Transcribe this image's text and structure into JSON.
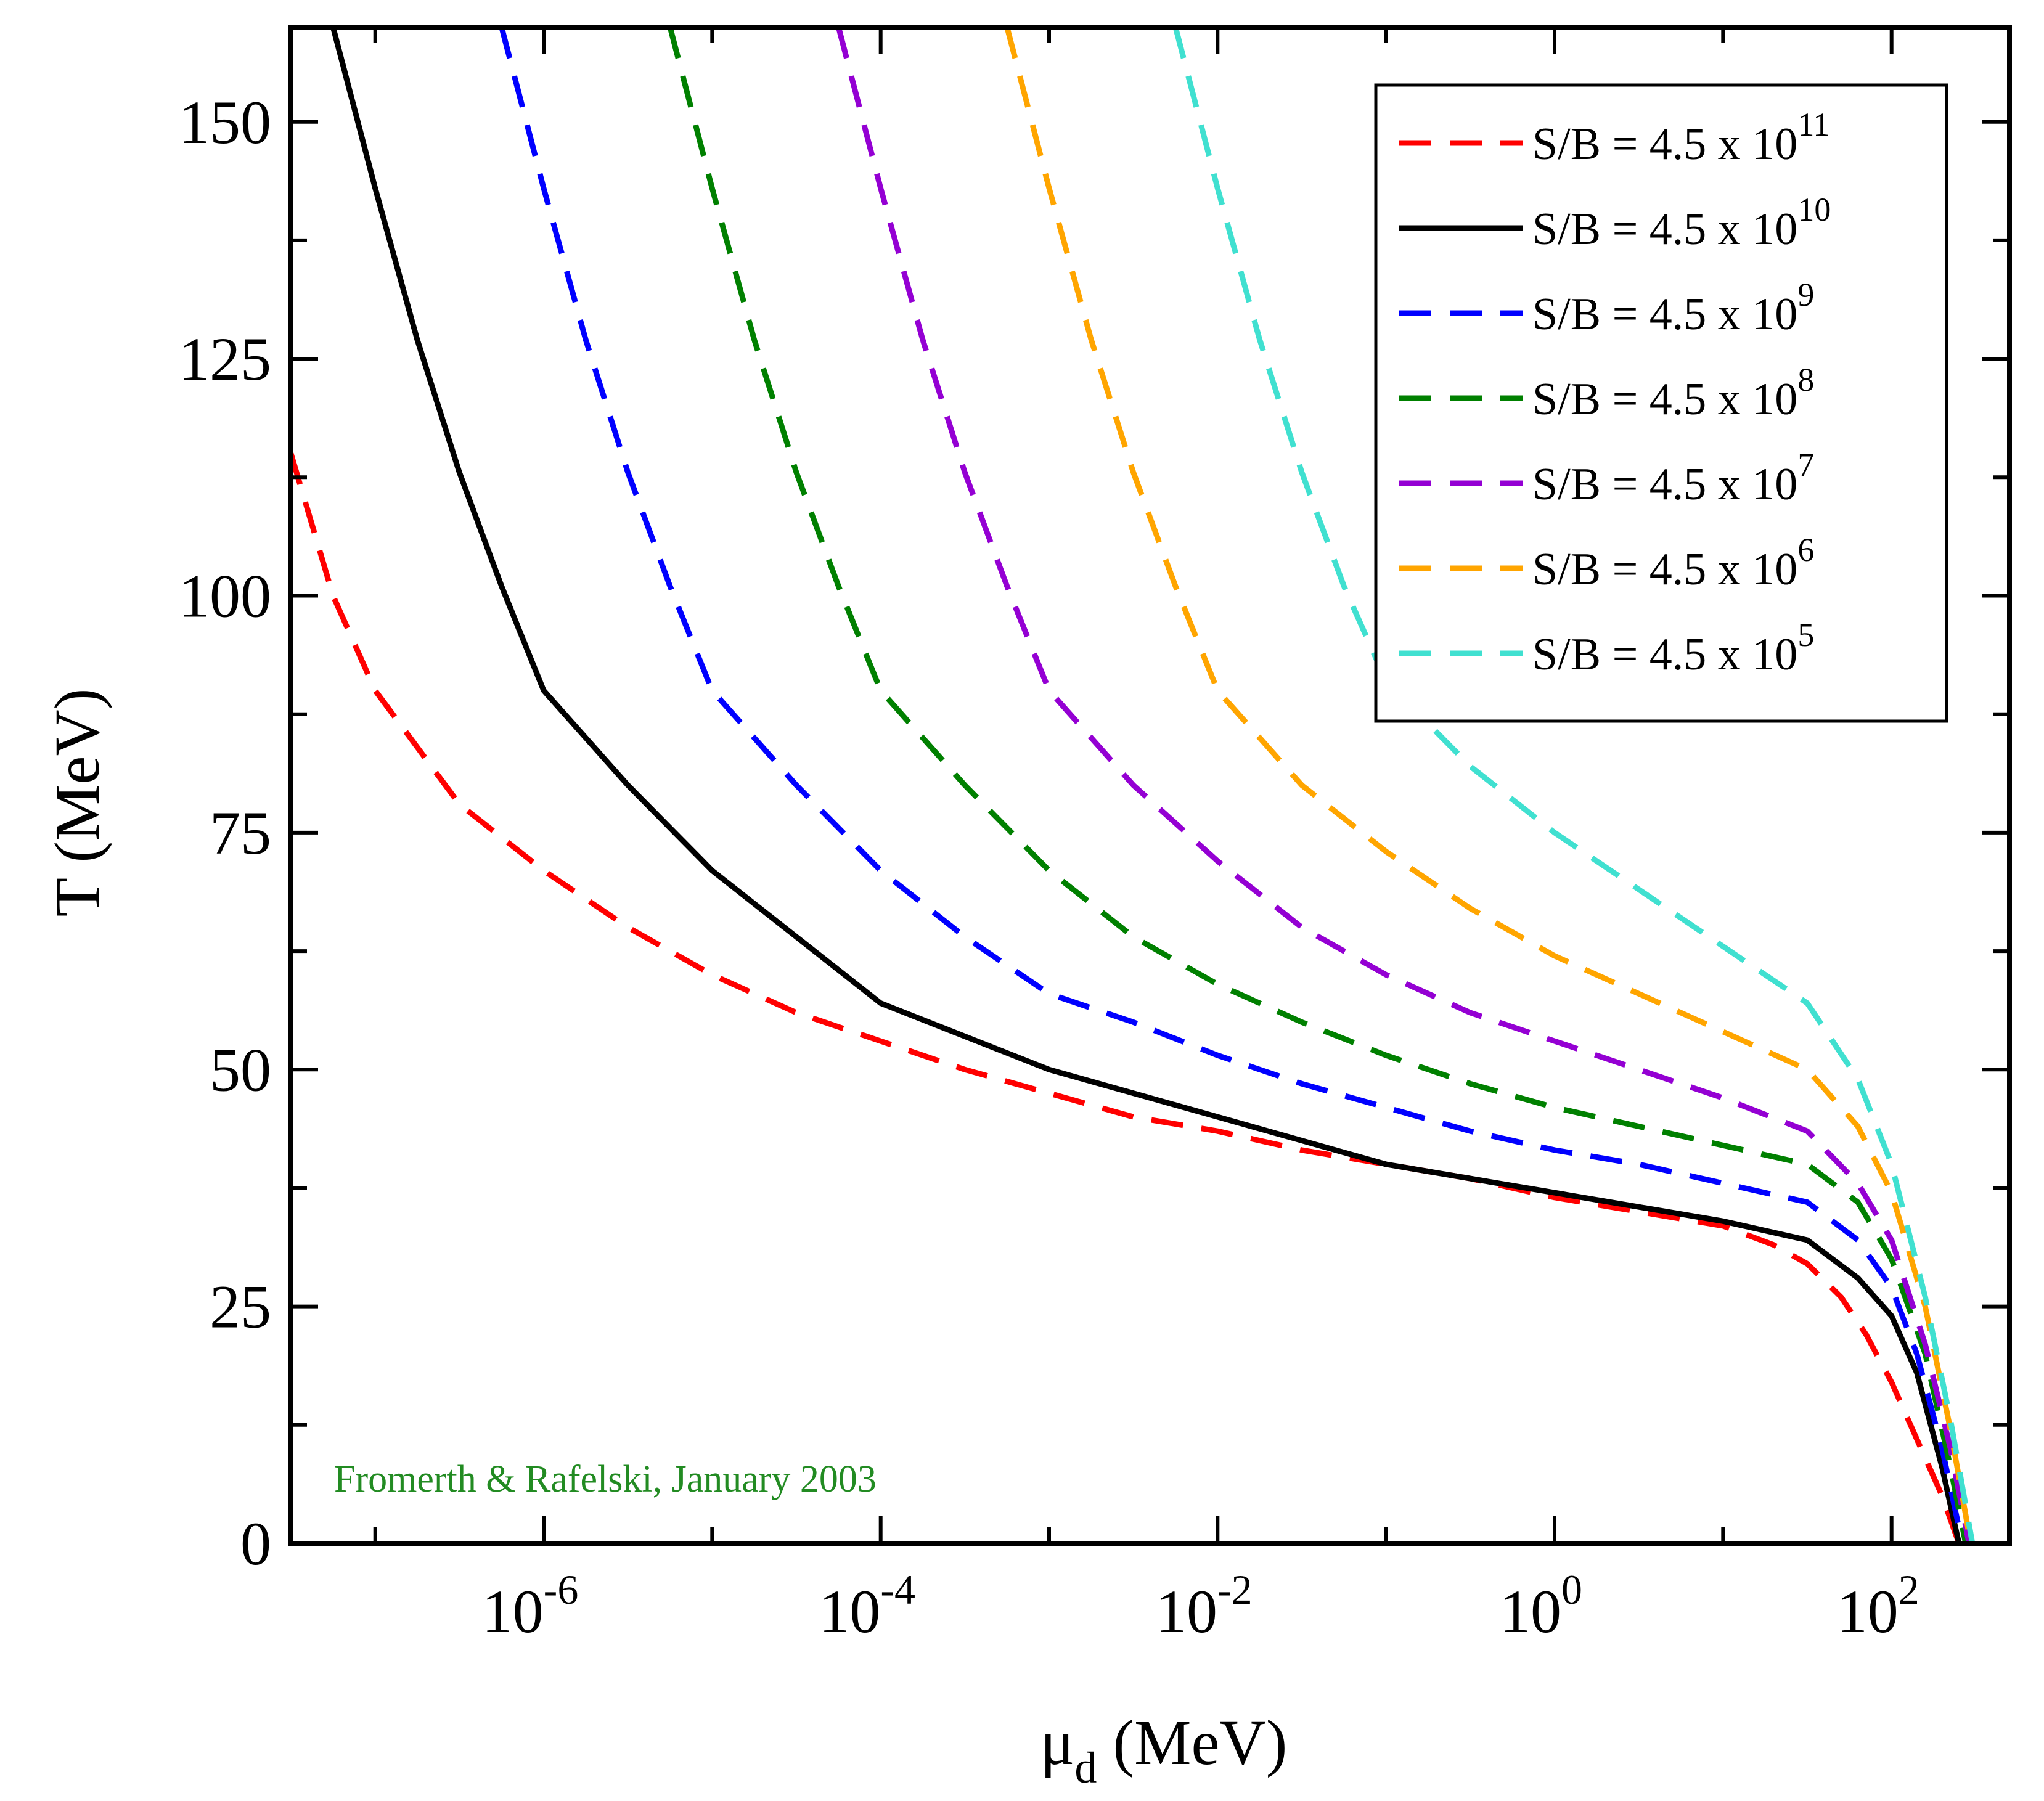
{
  "chart_data": {
    "type": "line",
    "title": "",
    "xlabel": {
      "main": "μ",
      "sub": "d",
      "unit": " (MeV)"
    },
    "ylabel": "T (MeV)",
    "xscale": "log",
    "xlim_log10": [
      -7.5,
      2.7
    ],
    "ylim": [
      0,
      160
    ],
    "x_ticks": [
      {
        "base": "10",
        "exp": "-6",
        "log10": -6
      },
      {
        "base": "10",
        "exp": "-4",
        "log10": -4
      },
      {
        "base": "10",
        "exp": "-2",
        "log10": -2
      },
      {
        "base": "10",
        "exp": "0",
        "log10": 0
      },
      {
        "base": "10",
        "exp": "2",
        "log10": 2
      }
    ],
    "y_ticks": [
      {
        "label": "0",
        "value": 0
      },
      {
        "label": "25",
        "value": 25
      },
      {
        "label": "50",
        "value": 50
      },
      {
        "label": "75",
        "value": 75
      },
      {
        "label": "100",
        "value": 100
      },
      {
        "label": "125",
        "value": 125
      },
      {
        "label": "150",
        "value": 150
      }
    ],
    "legend_position": "top-right",
    "annotation": {
      "text": "Fromerth & Rafelski, January 2003",
      "color": "#228b22"
    },
    "series": [
      {
        "id": "sb-11",
        "prefix": "S/B = 4.5 x 10",
        "exp": "11",
        "color": "#ff0000",
        "dashed": true,
        "points_log10x_T": [
          [
            -7.5,
            115
          ],
          [
            -7.25,
            100
          ],
          [
            -7.0,
            90
          ],
          [
            -6.75,
            84
          ],
          [
            -6.5,
            78
          ],
          [
            -6.0,
            71
          ],
          [
            -5.5,
            65
          ],
          [
            -5.0,
            60
          ],
          [
            -4.5,
            56
          ],
          [
            -4.0,
            53
          ],
          [
            -3.5,
            50
          ],
          [
            -3.0,
            47.5
          ],
          [
            -2.5,
            45
          ],
          [
            -2.0,
            43.5
          ],
          [
            -1.5,
            41.5
          ],
          [
            -1.0,
            40
          ],
          [
            -0.5,
            38.5
          ],
          [
            0.0,
            36.5
          ],
          [
            0.5,
            35
          ],
          [
            1.0,
            33.5
          ],
          [
            1.3,
            31.5
          ],
          [
            1.5,
            29.5
          ],
          [
            1.7,
            26
          ],
          [
            1.85,
            22
          ],
          [
            2.0,
            17
          ],
          [
            2.15,
            11
          ],
          [
            2.3,
            5
          ],
          [
            2.4,
            0
          ]
        ]
      },
      {
        "id": "sb-10",
        "prefix": "S/B = 4.5 x 10",
        "exp": "10",
        "color": "#000000",
        "dashed": false,
        "points_log10x_T": [
          [
            -7.25,
            160
          ],
          [
            -7.0,
            143
          ],
          [
            -6.75,
            127
          ],
          [
            -6.5,
            113
          ],
          [
            -6.25,
            101
          ],
          [
            -6.0,
            90
          ],
          [
            -5.5,
            80
          ],
          [
            -5.0,
            71
          ],
          [
            -4.5,
            64
          ],
          [
            -4.0,
            57
          ],
          [
            -3.5,
            53.5
          ],
          [
            -3.0,
            50
          ],
          [
            -2.5,
            47.5
          ],
          [
            -2.0,
            45
          ],
          [
            -1.5,
            42.5
          ],
          [
            -1.0,
            40
          ],
          [
            -0.5,
            38.5
          ],
          [
            0.0,
            37
          ],
          [
            0.5,
            35.5
          ],
          [
            1.0,
            34
          ],
          [
            1.5,
            32
          ],
          [
            1.8,
            28
          ],
          [
            2.0,
            24
          ],
          [
            2.15,
            18
          ],
          [
            2.3,
            8
          ],
          [
            2.4,
            0
          ]
        ]
      },
      {
        "id": "sb-9",
        "prefix": "S/B = 4.5 x 10",
        "exp": "9",
        "color": "#0000ff",
        "dashed": true,
        "points_log10x_T": [
          [
            -6.25,
            160
          ],
          [
            -6.0,
            143
          ],
          [
            -5.75,
            127
          ],
          [
            -5.5,
            113
          ],
          [
            -5.25,
            101
          ],
          [
            -5.0,
            90
          ],
          [
            -4.5,
            80
          ],
          [
            -4.0,
            71
          ],
          [
            -3.5,
            64
          ],
          [
            -3.0,
            58
          ],
          [
            -2.5,
            55
          ],
          [
            -2.0,
            51.5
          ],
          [
            -1.5,
            48.5
          ],
          [
            -1.0,
            46
          ],
          [
            -0.5,
            43.5
          ],
          [
            0.0,
            41.5
          ],
          [
            0.5,
            40
          ],
          [
            1.0,
            38
          ],
          [
            1.5,
            36
          ],
          [
            1.8,
            32
          ],
          [
            2.0,
            27
          ],
          [
            2.15,
            20
          ],
          [
            2.3,
            10
          ],
          [
            2.42,
            0
          ]
        ]
      },
      {
        "id": "sb-8",
        "prefix": "S/B = 4.5 x 10",
        "exp": "8",
        "color": "#008000",
        "dashed": true,
        "points_log10x_T": [
          [
            -5.25,
            160
          ],
          [
            -5.0,
            143
          ],
          [
            -4.75,
            127
          ],
          [
            -4.5,
            113
          ],
          [
            -4.25,
            101
          ],
          [
            -4.0,
            90
          ],
          [
            -3.5,
            80
          ],
          [
            -3.0,
            71
          ],
          [
            -2.5,
            64
          ],
          [
            -2.0,
            59
          ],
          [
            -1.5,
            55
          ],
          [
            -1.0,
            51.5
          ],
          [
            -0.5,
            48.5
          ],
          [
            0.0,
            46
          ],
          [
            0.5,
            44
          ],
          [
            1.0,
            42
          ],
          [
            1.5,
            40
          ],
          [
            1.8,
            36
          ],
          [
            2.0,
            30
          ],
          [
            2.2,
            20
          ],
          [
            2.35,
            8
          ],
          [
            2.44,
            0
          ]
        ]
      },
      {
        "id": "sb-7",
        "prefix": "S/B = 4.5 x 10",
        "exp": "7",
        "color": "#9400d3",
        "dashed": true,
        "points_log10x_T": [
          [
            -4.25,
            160
          ],
          [
            -4.0,
            143
          ],
          [
            -3.75,
            127
          ],
          [
            -3.5,
            113
          ],
          [
            -3.25,
            101
          ],
          [
            -3.0,
            90
          ],
          [
            -2.5,
            80
          ],
          [
            -2.0,
            72
          ],
          [
            -1.5,
            65
          ],
          [
            -1.0,
            60
          ],
          [
            -0.5,
            56
          ],
          [
            0.0,
            53
          ],
          [
            0.5,
            50
          ],
          [
            1.0,
            47
          ],
          [
            1.5,
            43.5
          ],
          [
            1.8,
            38
          ],
          [
            2.0,
            32
          ],
          [
            2.2,
            21
          ],
          [
            2.35,
            10
          ],
          [
            2.46,
            0
          ]
        ]
      },
      {
        "id": "sb-6",
        "prefix": "S/B = 4.5 x 10",
        "exp": "6",
        "color": "#ffa500",
        "dashed": true,
        "points_log10x_T": [
          [
            -3.25,
            160
          ],
          [
            -3.0,
            143
          ],
          [
            -2.75,
            127
          ],
          [
            -2.5,
            113
          ],
          [
            -2.25,
            101
          ],
          [
            -2.0,
            90
          ],
          [
            -1.5,
            80
          ],
          [
            -1.0,
            73
          ],
          [
            -0.5,
            67
          ],
          [
            0.0,
            62
          ],
          [
            0.5,
            58
          ],
          [
            1.0,
            54
          ],
          [
            1.5,
            50
          ],
          [
            1.8,
            44
          ],
          [
            2.0,
            37
          ],
          [
            2.2,
            25
          ],
          [
            2.35,
            12
          ],
          [
            2.47,
            0
          ]
        ]
      },
      {
        "id": "sb-5",
        "prefix": "S/B = 4.5 x 10",
        "exp": "5",
        "color": "#40e0d0",
        "dashed": true,
        "points_log10x_T": [
          [
            -2.25,
            160
          ],
          [
            -2.0,
            143
          ],
          [
            -1.75,
            127
          ],
          [
            -1.5,
            113
          ],
          [
            -1.25,
            101
          ],
          [
            -1.0,
            91
          ],
          [
            -0.5,
            82
          ],
          [
            0.0,
            75
          ],
          [
            0.5,
            69
          ],
          [
            1.0,
            63
          ],
          [
            1.5,
            57
          ],
          [
            1.8,
            49
          ],
          [
            2.0,
            40
          ],
          [
            2.2,
            26
          ],
          [
            2.35,
            13
          ],
          [
            2.48,
            0
          ]
        ]
      }
    ]
  }
}
